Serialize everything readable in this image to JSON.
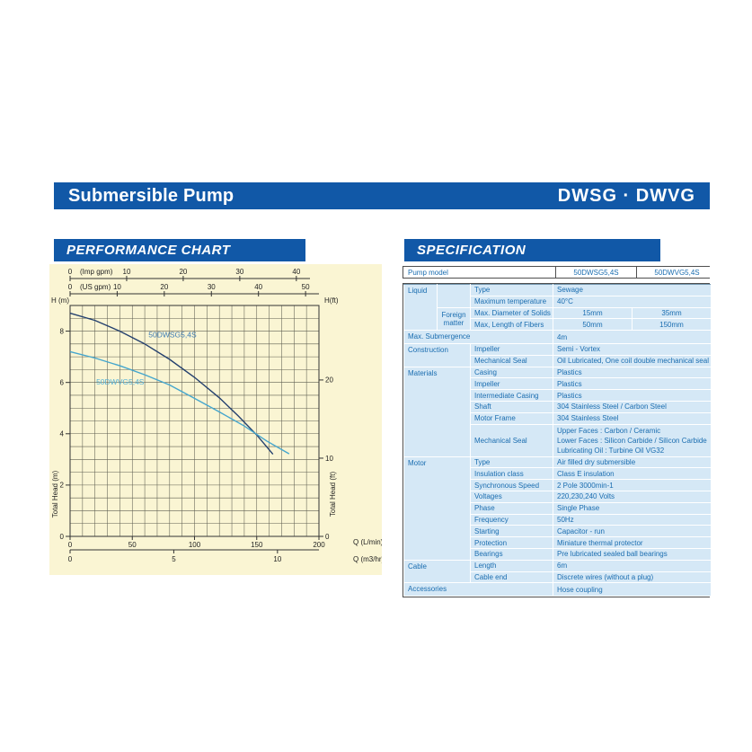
{
  "header": {
    "title": "Submersible Pump",
    "models": "DWSG · DWVG"
  },
  "sections": {
    "performance": "PERFORMANCE CHART",
    "specification": "SPECIFICATION"
  },
  "colors": {
    "brand_blue": "#1158a7",
    "chart_bg": "#faf5d3",
    "table_text": "#1a6db0",
    "table_cell_bg": "#d5e8f6",
    "curve_dwsg": "#24406e",
    "curve_dwvg": "#45a6cd"
  },
  "chart_data": {
    "type": "line",
    "title": "PERFORMANCE CHART",
    "x": {
      "label": "Q (L/min)",
      "min": 0,
      "max": 200,
      "ticks": [
        0,
        50,
        100,
        150,
        200
      ],
      "grid_step": 10
    },
    "x2": {
      "label": "Q (m3/hr)",
      "ticks": [
        0,
        5,
        10
      ],
      "lmin_per_unit": 16.6667
    },
    "top_imp": {
      "label": "(Imp gpm)",
      "ticks": [
        0,
        10,
        20,
        30,
        40
      ],
      "lmin_per_unit": 4.546
    },
    "top_us": {
      "label": "(US gpm)",
      "ticks": [
        0,
        10,
        20,
        30,
        40,
        50
      ],
      "lmin_per_unit": 3.785
    },
    "y": {
      "label": "H (m)",
      "side_label": "Total Head (m)",
      "min": 0,
      "max": 9,
      "ticks": [
        0,
        2,
        4,
        6,
        8
      ],
      "grid_step": 0.5
    },
    "y_right": {
      "label": "H(ft)",
      "side_label": "Total Head (ft)",
      "ticks": [
        0,
        10,
        20
      ],
      "m_per_unit": 0.3048
    },
    "grid": true,
    "series": [
      {
        "name": "50DWSG5,4S",
        "color": "#24406e",
        "label_color": "#3e7cb4",
        "label_at": [
          63,
          7.75
        ],
        "points": [
          [
            0,
            8.7
          ],
          [
            20,
            8.42
          ],
          [
            40,
            8.0
          ],
          [
            60,
            7.5
          ],
          [
            80,
            6.9
          ],
          [
            100,
            6.2
          ],
          [
            120,
            5.4
          ],
          [
            135,
            4.7
          ],
          [
            150,
            3.95
          ],
          [
            163,
            3.2
          ]
        ]
      },
      {
        "name": "50DWVG5,4S",
        "color": "#45a6cd",
        "label_color": "#55b2d8",
        "label_at": [
          21,
          5.92
        ],
        "points": [
          [
            0,
            7.2
          ],
          [
            20,
            6.95
          ],
          [
            40,
            6.65
          ],
          [
            60,
            6.3
          ],
          [
            80,
            5.9
          ],
          [
            100,
            5.38
          ],
          [
            120,
            4.85
          ],
          [
            140,
            4.3
          ],
          [
            158,
            3.72
          ],
          [
            176,
            3.22
          ]
        ]
      }
    ]
  },
  "spec": {
    "model_row": {
      "label": "Pump model",
      "models": [
        "50DWSG5,4S",
        "50DWVG5,4S"
      ]
    },
    "rows": [
      {
        "sec": true,
        "cells": [
          {
            "t": "Liquid",
            "rs": 4,
            "c": "cat"
          },
          {
            "t": "",
            "rs": 2,
            "c": "cat"
          },
          {
            "t": "Type",
            "c": "attr"
          },
          {
            "t": "Sewage",
            "cs": 2,
            "c": "val"
          }
        ]
      },
      {
        "sec": false,
        "cells": [
          {
            "t": "Maximum temperature",
            "c": "attr"
          },
          {
            "t": "40°C",
            "cs": 2,
            "c": "val"
          }
        ]
      },
      {
        "sec": false,
        "cells": [
          {
            "t": "Foreign matter",
            "rs": 2,
            "c": "sub"
          },
          {
            "t": "Max. Diameter of Solids",
            "c": "attr"
          },
          {
            "t": "15mm",
            "c": "c"
          },
          {
            "t": "35mm",
            "c": "c"
          }
        ]
      },
      {
        "sec": false,
        "cells": [
          {
            "t": "Max, Length of Fibers",
            "c": "attr"
          },
          {
            "t": "50mm",
            "c": "c"
          },
          {
            "t": "150mm",
            "c": "c"
          }
        ]
      },
      {
        "sec": true,
        "cells": [
          {
            "t": "Max. Submergence",
            "cs": 3,
            "c": "cat"
          },
          {
            "t": "4m",
            "cs": 2,
            "c": "val"
          }
        ]
      },
      {
        "sec": true,
        "cells": [
          {
            "t": "Construction",
            "rs": 2,
            "cs": 2,
            "c": "cat"
          },
          {
            "t": "Impeller",
            "c": "attr"
          },
          {
            "t": "Semi - Vortex",
            "cs": 2,
            "c": "val"
          }
        ]
      },
      {
        "sec": false,
        "cells": [
          {
            "t": "Mechanical Seal",
            "c": "attr"
          },
          {
            "t": "Oil Lubricated, One coil double mechanical seal",
            "cs": 2,
            "c": "val"
          }
        ]
      },
      {
        "sec": true,
        "cells": [
          {
            "t": "Materials",
            "rs": 6,
            "cs": 2,
            "c": "cat"
          },
          {
            "t": "Casing",
            "c": "attr"
          },
          {
            "t": "Plastics",
            "cs": 2,
            "c": "val"
          }
        ]
      },
      {
        "sec": false,
        "cells": [
          {
            "t": "Impeller",
            "c": "attr"
          },
          {
            "t": "Plastics",
            "cs": 2,
            "c": "val"
          }
        ]
      },
      {
        "sec": false,
        "cells": [
          {
            "t": "Intermediate Casing",
            "c": "attr"
          },
          {
            "t": "Plastics",
            "cs": 2,
            "c": "val"
          }
        ]
      },
      {
        "sec": false,
        "cells": [
          {
            "t": "Shaft",
            "c": "attr"
          },
          {
            "t": "304 Stainless Steel / Carbon Steel",
            "cs": 2,
            "c": "val"
          }
        ]
      },
      {
        "sec": false,
        "cells": [
          {
            "t": "Motor Frame",
            "c": "attr"
          },
          {
            "t": "304 Stainless Steel",
            "cs": 2,
            "c": "val"
          }
        ]
      },
      {
        "sec": false,
        "cells": [
          {
            "t": "Mechanical Seal",
            "c": "attr"
          },
          {
            "lines": [
              "Upper Faces : Carbon / Ceramic",
              "Lower Faces : Silicon Carbide / Silicon Carbide",
              "Lubricating Oil : Turbine Oil VG32"
            ],
            "cs": 2,
            "c": "ml"
          }
        ]
      },
      {
        "sec": true,
        "cells": [
          {
            "t": "Motor",
            "rs": 9,
            "cs": 2,
            "c": "cat"
          },
          {
            "t": "Type",
            "c": "attr"
          },
          {
            "t": "Air filled dry submersible",
            "cs": 2,
            "c": "val"
          }
        ]
      },
      {
        "sec": false,
        "cells": [
          {
            "t": "Insulation class",
            "c": "attr"
          },
          {
            "t": "Class E insulation",
            "cs": 2,
            "c": "val"
          }
        ]
      },
      {
        "sec": false,
        "cells": [
          {
            "t": "Synchronous Speed",
            "c": "attr"
          },
          {
            "t": "2 Pole 3000min-1",
            "cs": 2,
            "c": "val"
          }
        ]
      },
      {
        "sec": false,
        "cells": [
          {
            "t": "Voltages",
            "c": "attr"
          },
          {
            "t": "220,230,240 Volts",
            "cs": 2,
            "c": "val"
          }
        ]
      },
      {
        "sec": false,
        "cells": [
          {
            "t": "Phase",
            "c": "attr"
          },
          {
            "t": "Single Phase",
            "cs": 2,
            "c": "val"
          }
        ]
      },
      {
        "sec": false,
        "cells": [
          {
            "t": "Frequency",
            "c": "attr"
          },
          {
            "t": "50Hz",
            "cs": 2,
            "c": "val"
          }
        ]
      },
      {
        "sec": false,
        "cells": [
          {
            "t": "Starting",
            "c": "attr"
          },
          {
            "t": "Capacitor - run",
            "cs": 2,
            "c": "val"
          }
        ]
      },
      {
        "sec": false,
        "cells": [
          {
            "t": "Protection",
            "c": "attr"
          },
          {
            "t": "Miniature thermal protector",
            "cs": 2,
            "c": "val"
          }
        ]
      },
      {
        "sec": false,
        "cells": [
          {
            "t": "Bearings",
            "c": "attr"
          },
          {
            "t": "Pre lubricated sealed ball bearings",
            "cs": 2,
            "c": "val"
          }
        ]
      },
      {
        "sec": true,
        "cells": [
          {
            "t": "Cable",
            "rs": 2,
            "cs": 2,
            "c": "cat"
          },
          {
            "t": "Length",
            "c": "attr"
          },
          {
            "t": "6m",
            "cs": 2,
            "c": "val"
          }
        ]
      },
      {
        "sec": false,
        "cells": [
          {
            "t": "Cable end",
            "c": "attr"
          },
          {
            "t": "Discrete wires (without a plug)",
            "cs": 2,
            "c": "val"
          }
        ]
      },
      {
        "sec": true,
        "cells": [
          {
            "t": "Accessories",
            "cs": 3,
            "c": "cat"
          },
          {
            "t": "Hose coupling",
            "cs": 2,
            "c": "val"
          }
        ]
      }
    ]
  }
}
